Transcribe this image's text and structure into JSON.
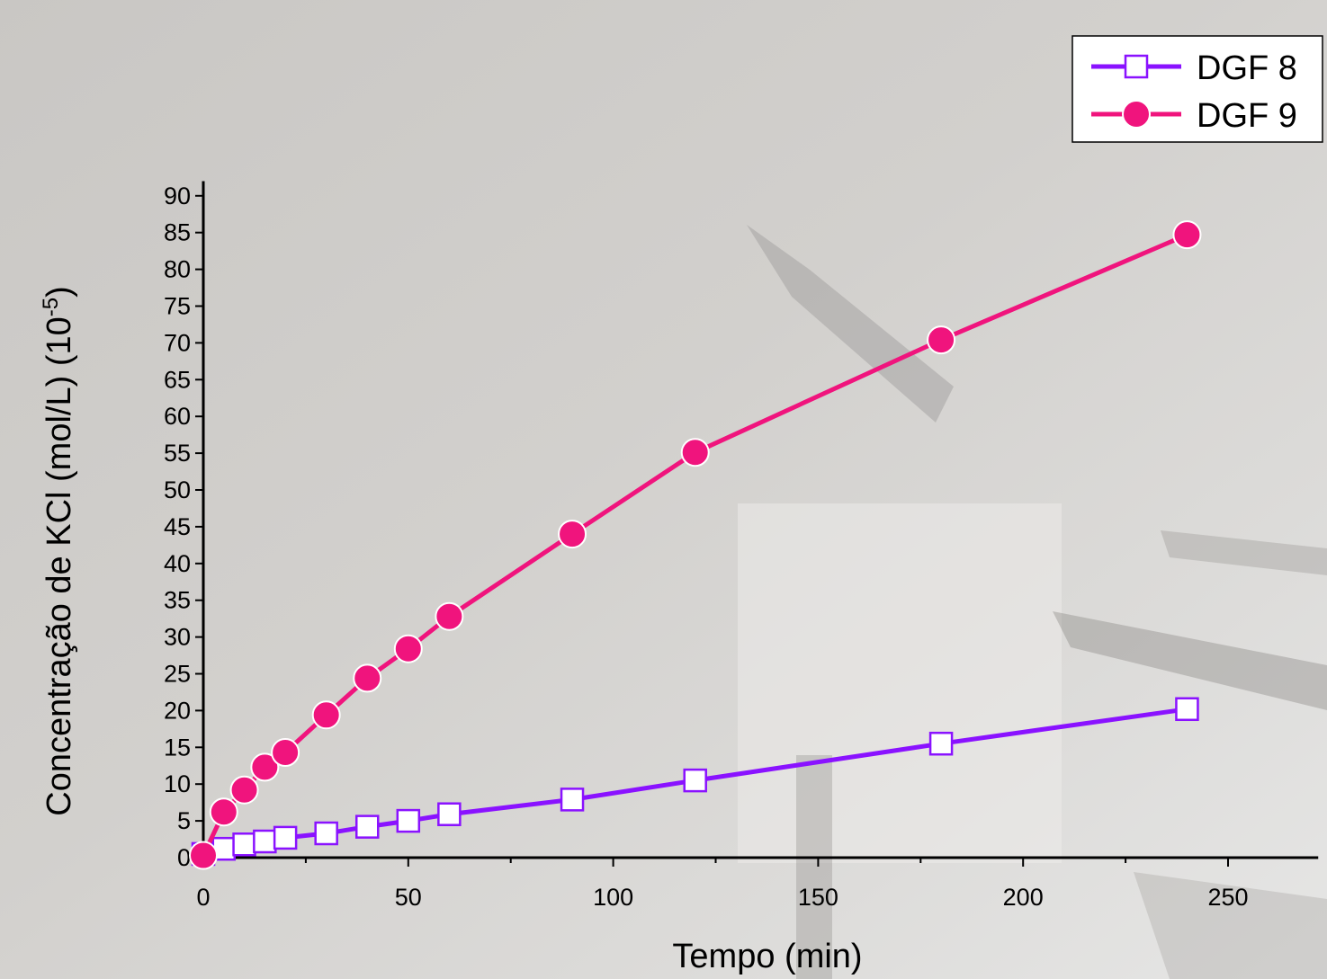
{
  "chart_data": {
    "type": "line",
    "xlabel": "Tempo (min)",
    "ylabel_main": "Concentração de KCl (mol/L) (10",
    "ylabel_exp": "-5",
    "ylabel_close": ")",
    "xlim": [
      0,
      272
    ],
    "ylim": [
      0,
      92
    ],
    "x_ticks": [
      0,
      50,
      100,
      150,
      200,
      250
    ],
    "x_minor_ticks": [
      25,
      75,
      125,
      175,
      225
    ],
    "y_ticks": [
      0,
      5,
      10,
      15,
      20,
      25,
      30,
      35,
      40,
      45,
      50,
      55,
      60,
      65,
      70,
      75,
      80,
      85,
      90
    ],
    "grid": false,
    "legend_position": "top-right",
    "series": [
      {
        "name": "DGF 8",
        "color": "#8a12ff",
        "marker": "open-square",
        "x": [
          0,
          5,
          10,
          15,
          20,
          30,
          40,
          50,
          60,
          90,
          120,
          180,
          240
        ],
        "y": [
          0.5,
          1.2,
          1.8,
          2.2,
          2.7,
          3.3,
          4.2,
          5.0,
          5.9,
          7.9,
          10.5,
          15.5,
          20.2
        ]
      },
      {
        "name": "DGF 9",
        "color": "#f0147d",
        "marker": "filled-circle",
        "x": [
          0,
          5,
          10,
          15,
          20,
          30,
          40,
          50,
          60,
          90,
          120,
          180,
          240
        ],
        "y": [
          0.3,
          6.2,
          9.2,
          12.3,
          14.3,
          19.4,
          24.4,
          28.4,
          32.8,
          44.0,
          55.1,
          70.4,
          84.7
        ]
      }
    ]
  }
}
